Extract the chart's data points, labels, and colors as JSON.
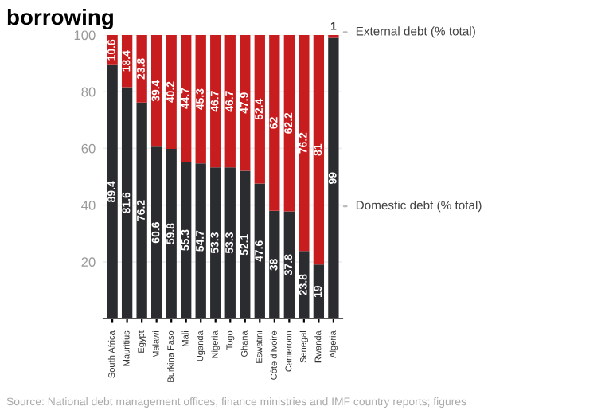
{
  "chart_data": {
    "type": "bar",
    "title": "borrowing",
    "stacked": true,
    "data_labels": true,
    "grid": "y",
    "categories": [
      "South Africa",
      "Mauritius",
      "Egypt",
      "Malawi",
      "Burkina Faso",
      "Mali",
      "Uganda",
      "Nigeria",
      "Togo",
      "Ghana",
      "Eswatini",
      "Côte d'Ivoire",
      "Cameroon",
      "Senegal",
      "Rwanda",
      "Algeria"
    ],
    "series": [
      {
        "name": "Domestic debt (% total)",
        "color": "#2b2c30",
        "values": [
          89.4,
          81.6,
          76.2,
          60.6,
          59.8,
          55.3,
          54.7,
          53.3,
          53.3,
          52.1,
          47.6,
          38,
          37.8,
          23.8,
          19,
          99
        ]
      },
      {
        "name": "External debt (% total)",
        "color": "#c81d1f",
        "values": [
          10.6,
          18.4,
          23.8,
          39.4,
          40.2,
          44.7,
          45.3,
          46.7,
          46.7,
          47.9,
          52.4,
          62,
          62.2,
          76.2,
          81,
          1
        ]
      }
    ],
    "ylim": [
      0,
      100
    ],
    "yticks": [
      {
        "value": 0,
        "label": null
      },
      20,
      40,
      60,
      80,
      100
    ],
    "annotations": [
      "Source: National debt management offices, finance ministries and IMF country reports; figures"
    ]
  }
}
